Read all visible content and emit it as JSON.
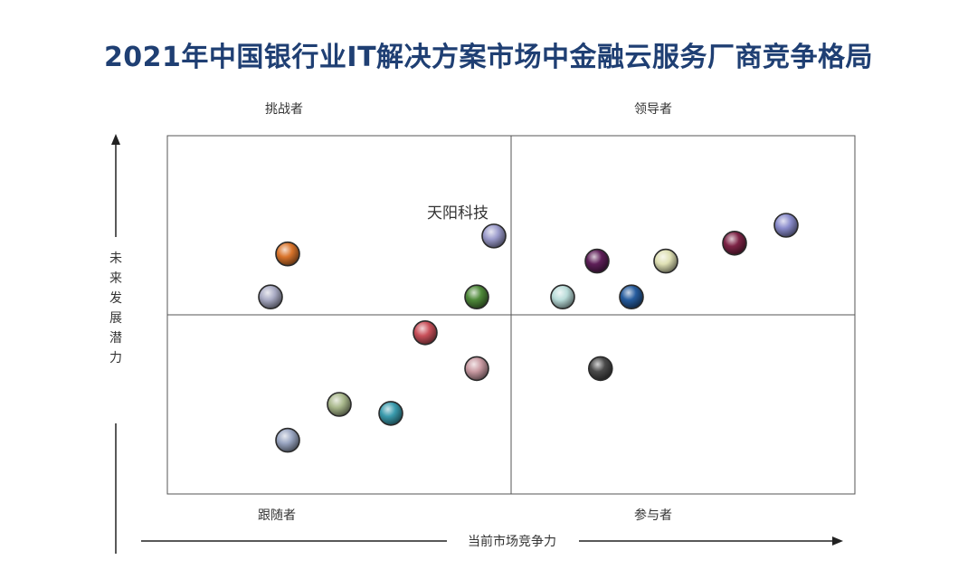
{
  "title": "2021年中国银行业IT解决方案市场中金融云服务厂商竞争格局",
  "chart_data": {
    "type": "scatter",
    "title": "2021年中国银行业IT解决方案市场中金融云服务厂商竞争格局",
    "xlabel": "当前市场竞争力",
    "ylabel": "未来发展潜力",
    "xlim": [
      0,
      10
    ],
    "ylim": [
      0,
      10
    ],
    "grid": false,
    "quadrants": {
      "top_left": "挑战者",
      "top_right": "领导者",
      "bottom_left": "跟随者",
      "bottom_right": "参与者"
    },
    "points": [
      {
        "x": 1.75,
        "y": 6.7,
        "color": "#d9742b",
        "label": ""
      },
      {
        "x": 1.5,
        "y": 5.5,
        "color": "#a9abc4",
        "label": ""
      },
      {
        "x": 4.75,
        "y": 7.2,
        "color": "#9c9ccc",
        "label": "天阳科技"
      },
      {
        "x": 4.5,
        "y": 5.5,
        "color": "#4f8a3a",
        "label": ""
      },
      {
        "x": 3.75,
        "y": 4.5,
        "color": "#c9505a",
        "label": ""
      },
      {
        "x": 4.5,
        "y": 3.5,
        "color": "#c99aa2",
        "label": ""
      },
      {
        "x": 6.3,
        "y": 3.5,
        "color": "#4a4a4a",
        "label": ""
      },
      {
        "x": 2.5,
        "y": 2.5,
        "color": "#a9b88c",
        "label": ""
      },
      {
        "x": 3.25,
        "y": 2.25,
        "color": "#3a9bad",
        "label": ""
      },
      {
        "x": 1.75,
        "y": 1.5,
        "color": "#9aa6c2",
        "label": ""
      },
      {
        "x": 5.75,
        "y": 5.5,
        "color": "#b9dcd9",
        "label": ""
      },
      {
        "x": 6.75,
        "y": 5.5,
        "color": "#265c9e",
        "label": ""
      },
      {
        "x": 6.25,
        "y": 6.5,
        "color": "#5e1f58",
        "label": ""
      },
      {
        "x": 7.25,
        "y": 6.5,
        "color": "#dfe0b4",
        "label": ""
      },
      {
        "x": 8.25,
        "y": 7.0,
        "color": "#7d2446",
        "label": ""
      },
      {
        "x": 9.0,
        "y": 7.5,
        "color": "#8a8ccc",
        "label": ""
      }
    ]
  }
}
